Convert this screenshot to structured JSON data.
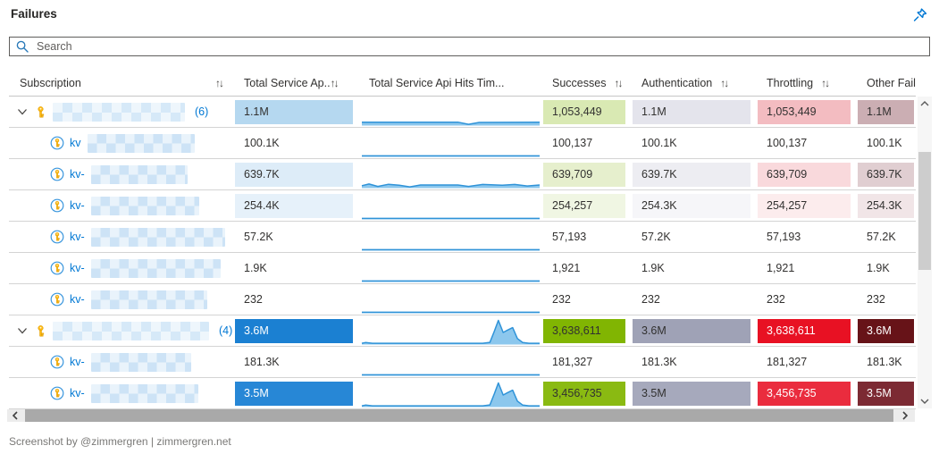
{
  "header": {
    "title": "Failures",
    "pin_icon": "pin-icon"
  },
  "search": {
    "placeholder": "Search",
    "value": "",
    "icon": "search-icon"
  },
  "accent_colors": {
    "link_blue": "#0078d4",
    "heat_blue_strong": "#1b80d2",
    "heat_green_strong": "#81b502",
    "heat_lavender_strong": "#9fa2b6",
    "heat_red_strong": "#e81123",
    "heat_maroon_strong": "#671318",
    "sparkline_stroke": "#2f93d8",
    "sparkline_fill": "#8cc7ed"
  },
  "columns": [
    {
      "label": "Subscription",
      "sortable": true
    },
    {
      "label": "Total Service Ap..",
      "sortable": true
    },
    {
      "label": "Total Service Api Hits Tim...",
      "sortable": false
    },
    {
      "label": "Successes",
      "sortable": true
    },
    {
      "label": "Authentication",
      "sortable": true
    },
    {
      "label": "Throttling",
      "sortable": true
    },
    {
      "label": "Other Failures",
      "sortable": true
    }
  ],
  "sort_icon": "↑↓",
  "rows": [
    {
      "kind": "group",
      "prefix": "",
      "count": "(6)",
      "blur_width": 148,
      "spark": "band1",
      "cells": {
        "total": {
          "text": "1.1M",
          "bg": "#b5d8f0",
          "fg": "#323130"
        },
        "successes": {
          "text": "1,053,449",
          "bg": "#d9e9b3",
          "fg": "#323130"
        },
        "authentication": {
          "text": "1.1M",
          "bg": "#e4e4ec",
          "fg": "#323130"
        },
        "throttling": {
          "text": "1,053,449",
          "bg": "#f3bcc1",
          "fg": "#323130"
        },
        "other_failures": {
          "text": "1.1M",
          "bg": "#cbaeb3",
          "fg": "#323130"
        }
      }
    },
    {
      "kind": "child",
      "prefix": "kv",
      "blur_width": 120,
      "spark": "thin",
      "cells": {
        "total": {
          "text": "100.1K",
          "bg": "",
          "fg": "#323130"
        },
        "successes": {
          "text": "100,137",
          "bg": "",
          "fg": "#323130"
        },
        "authentication": {
          "text": "100.1K",
          "bg": "",
          "fg": "#323130"
        },
        "throttling": {
          "text": "100,137",
          "bg": "",
          "fg": "#323130"
        },
        "other_failures": {
          "text": "100.1K",
          "bg": "",
          "fg": "#323130"
        }
      }
    },
    {
      "kind": "child",
      "prefix": "kv-",
      "blur_width": 108,
      "spark": "band2",
      "cells": {
        "total": {
          "text": "639.7K",
          "bg": "#ddecf8",
          "fg": "#323130"
        },
        "successes": {
          "text": "639,709",
          "bg": "#e6efcd",
          "fg": "#323130"
        },
        "authentication": {
          "text": "639.7K",
          "bg": "#ededf2",
          "fg": "#323130"
        },
        "throttling": {
          "text": "639,709",
          "bg": "#f9d9dc",
          "fg": "#323130"
        },
        "other_failures": {
          "text": "639.7K",
          "bg": "#e0ced1",
          "fg": "#323130"
        }
      }
    },
    {
      "kind": "child",
      "prefix": "kv-",
      "blur_width": 121,
      "spark": "thin",
      "cells": {
        "total": {
          "text": "254.4K",
          "bg": "#e6f1fa",
          "fg": "#323130"
        },
        "successes": {
          "text": "254,257",
          "bg": "#f0f6e3",
          "fg": "#323130"
        },
        "authentication": {
          "text": "254.3K",
          "bg": "#f6f6f9",
          "fg": "#323130"
        },
        "throttling": {
          "text": "254,257",
          "bg": "#fceced",
          "fg": "#323130"
        },
        "other_failures": {
          "text": "254.3K",
          "bg": "#f1e5e7",
          "fg": "#323130"
        }
      }
    },
    {
      "kind": "child",
      "prefix": "kv-",
      "blur_width": 150,
      "spark": "thin",
      "cells": {
        "total": {
          "text": "57.2K",
          "bg": "",
          "fg": "#323130"
        },
        "successes": {
          "text": "57,193",
          "bg": "",
          "fg": "#323130"
        },
        "authentication": {
          "text": "57.2K",
          "bg": "",
          "fg": "#323130"
        },
        "throttling": {
          "text": "57,193",
          "bg": "",
          "fg": "#323130"
        },
        "other_failures": {
          "text": "57.2K",
          "bg": "",
          "fg": "#323130"
        }
      }
    },
    {
      "kind": "child",
      "prefix": "kv-",
      "blur_width": 145,
      "spark": "thin",
      "cells": {
        "total": {
          "text": "1.9K",
          "bg": "",
          "fg": "#323130"
        },
        "successes": {
          "text": "1,921",
          "bg": "",
          "fg": "#323130"
        },
        "authentication": {
          "text": "1.9K",
          "bg": "",
          "fg": "#323130"
        },
        "throttling": {
          "text": "1,921",
          "bg": "",
          "fg": "#323130"
        },
        "other_failures": {
          "text": "1.9K",
          "bg": "",
          "fg": "#323130"
        }
      }
    },
    {
      "kind": "child",
      "prefix": "kv-",
      "blur_width": 130,
      "spark": "thin",
      "cells": {
        "total": {
          "text": "232",
          "bg": "",
          "fg": "#323130"
        },
        "successes": {
          "text": "232",
          "bg": "",
          "fg": "#323130"
        },
        "authentication": {
          "text": "232",
          "bg": "",
          "fg": "#323130"
        },
        "throttling": {
          "text": "232",
          "bg": "",
          "fg": "#323130"
        },
        "other_failures": {
          "text": "232",
          "bg": "",
          "fg": "#323130"
        }
      }
    },
    {
      "kind": "group",
      "prefix": "",
      "count": "(4)",
      "blur_width": 175,
      "spark": "peak",
      "cells": {
        "total": {
          "text": "3.6M",
          "bg": "#1b80d2",
          "fg": "#ffffff"
        },
        "successes": {
          "text": "3,638,611",
          "bg": "#81b502",
          "fg": "#323130"
        },
        "authentication": {
          "text": "3.6M",
          "bg": "#9fa2b6",
          "fg": "#323130"
        },
        "throttling": {
          "text": "3,638,611",
          "bg": "#e81123",
          "fg": "#ffffff"
        },
        "other_failures": {
          "text": "3.6M",
          "bg": "#671318",
          "fg": "#ffffff"
        }
      }
    },
    {
      "kind": "child",
      "prefix": "kv-",
      "blur_width": 112,
      "spark": "thin",
      "cells": {
        "total": {
          "text": "181.3K",
          "bg": "",
          "fg": "#323130"
        },
        "successes": {
          "text": "181,327",
          "bg": "",
          "fg": "#323130"
        },
        "authentication": {
          "text": "181.3K",
          "bg": "",
          "fg": "#323130"
        },
        "throttling": {
          "text": "181,327",
          "bg": "",
          "fg": "#323130"
        },
        "other_failures": {
          "text": "181.3K",
          "bg": "",
          "fg": "#323130"
        }
      }
    },
    {
      "kind": "child",
      "prefix": "kv-",
      "blur_width": 120,
      "spark": "peak",
      "cells": {
        "total": {
          "text": "3.5M",
          "bg": "#2787d6",
          "fg": "#ffffff"
        },
        "successes": {
          "text": "3,456,735",
          "bg": "#8aba12",
          "fg": "#323130"
        },
        "authentication": {
          "text": "3.5M",
          "bg": "#a6a9bc",
          "fg": "#323130"
        },
        "throttling": {
          "text": "3,456,735",
          "bg": "#ea2c3e",
          "fg": "#ffffff"
        },
        "other_failures": {
          "text": "3.5M",
          "bg": "#7c2a33",
          "fg": "#ffffff"
        }
      }
    }
  ],
  "sparkline_shapes": {
    "thin": [
      [
        0,
        0.04
      ],
      [
        1,
        0.04
      ]
    ],
    "band1": [
      [
        0,
        0.14
      ],
      [
        0.54,
        0.14
      ],
      [
        0.6,
        0.05
      ],
      [
        0.66,
        0.13
      ],
      [
        1,
        0.14
      ]
    ],
    "band2": [
      [
        0,
        0.1
      ],
      [
        0.04,
        0.17
      ],
      [
        0.09,
        0.07
      ],
      [
        0.15,
        0.16
      ],
      [
        0.21,
        0.12
      ],
      [
        0.27,
        0.05
      ],
      [
        0.33,
        0.13
      ],
      [
        0.54,
        0.13
      ],
      [
        0.6,
        0.07
      ],
      [
        0.68,
        0.15
      ],
      [
        0.79,
        0.12
      ],
      [
        0.86,
        0.15
      ],
      [
        0.93,
        0.09
      ],
      [
        1,
        0.13
      ]
    ],
    "peak": [
      [
        0,
        0.05
      ],
      [
        0.02,
        0.08
      ],
      [
        0.06,
        0.05
      ],
      [
        0.68,
        0.05
      ],
      [
        0.72,
        0.09
      ],
      [
        0.745,
        0.55
      ],
      [
        0.768,
        1.0
      ],
      [
        0.795,
        0.5
      ],
      [
        0.82,
        0.6
      ],
      [
        0.848,
        0.7
      ],
      [
        0.875,
        0.25
      ],
      [
        0.905,
        0.08
      ],
      [
        0.94,
        0.05
      ],
      [
        1,
        0.05
      ]
    ]
  },
  "footer": {
    "credit": "Screenshot by @zimmergren | zimmergren.net"
  }
}
